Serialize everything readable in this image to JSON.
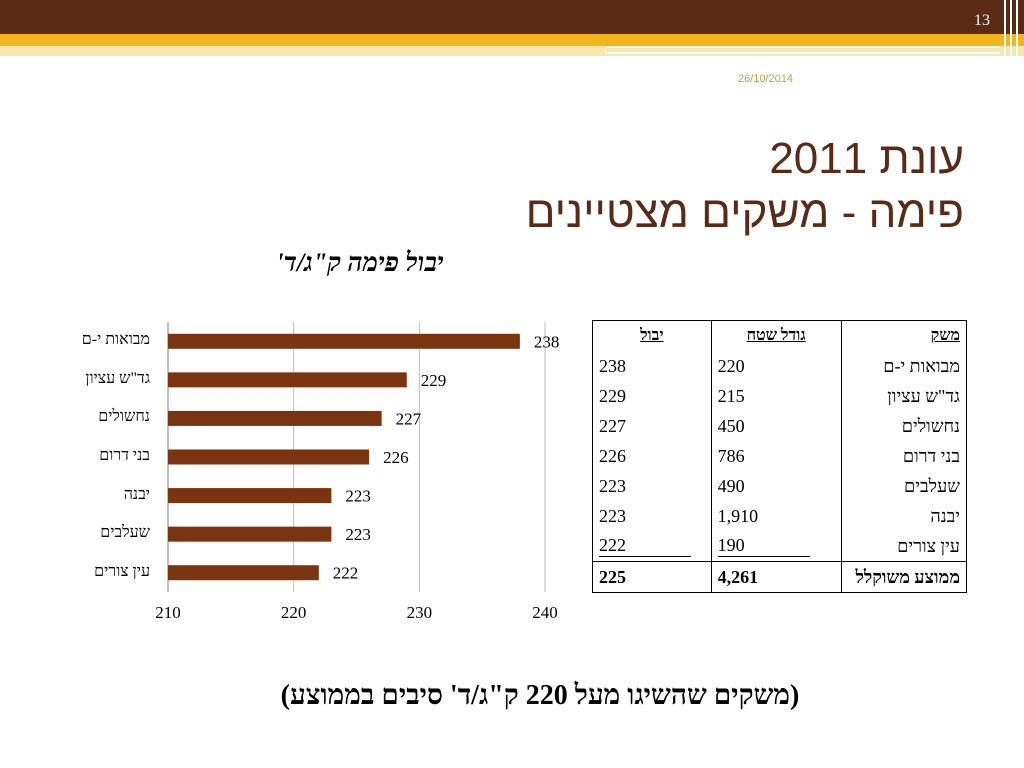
{
  "header": {
    "page_number": "13",
    "date": "26/10/2014"
  },
  "title": {
    "line1": "עונת 2011",
    "line2": "פימה - משקים מצטיינים"
  },
  "chart_title": "יבול פימה ק\"ג/ד'",
  "colors": {
    "header_dark": "#5a2a17",
    "header_gold": "#f2b51c",
    "bar": "#7a3410",
    "title": "#5a2a17",
    "date": "#c0a23c"
  },
  "chart_data": {
    "type": "bar",
    "orientation": "horizontal",
    "title": "יבול פימה ק\"ג/ד'",
    "categories": [
      "מבואות י-ם",
      "גד\"ש עציון",
      "נחשולים",
      "בני דרום",
      "יבנה",
      "שעלבים",
      "עין צורים"
    ],
    "values": [
      238,
      229,
      227,
      226,
      223,
      223,
      222
    ],
    "xlim": [
      210,
      240
    ],
    "xticks": [
      "210",
      "220",
      "230",
      "240"
    ],
    "grid": true,
    "legend": "none"
  },
  "table": {
    "headers": {
      "farm": "משק",
      "area": "גודל שטח",
      "yield": "יבול"
    },
    "rows": [
      {
        "farm": "מבואות י-ם",
        "area": "220",
        "yield": "238"
      },
      {
        "farm": "גד\"ש עציון",
        "area": "215",
        "yield": "229"
      },
      {
        "farm": "נחשולים",
        "area": "450",
        "yield": "227"
      },
      {
        "farm": "בני דרום",
        "area": "786",
        "yield": "226"
      },
      {
        "farm": "שעלבים",
        "area": "490",
        "yield": "223"
      },
      {
        "farm": "יבנה",
        "area": "1,910",
        "yield": "223"
      },
      {
        "farm": "עין צורים",
        "area": "190",
        "yield": "222"
      }
    ],
    "total": {
      "farm": "ממוצע משוקלל",
      "area": "4,261",
      "yield": "225"
    }
  },
  "footnote": "(משקים שהשיגו מעל 220 ק\"ג/ד' סיבים בממוצע)"
}
